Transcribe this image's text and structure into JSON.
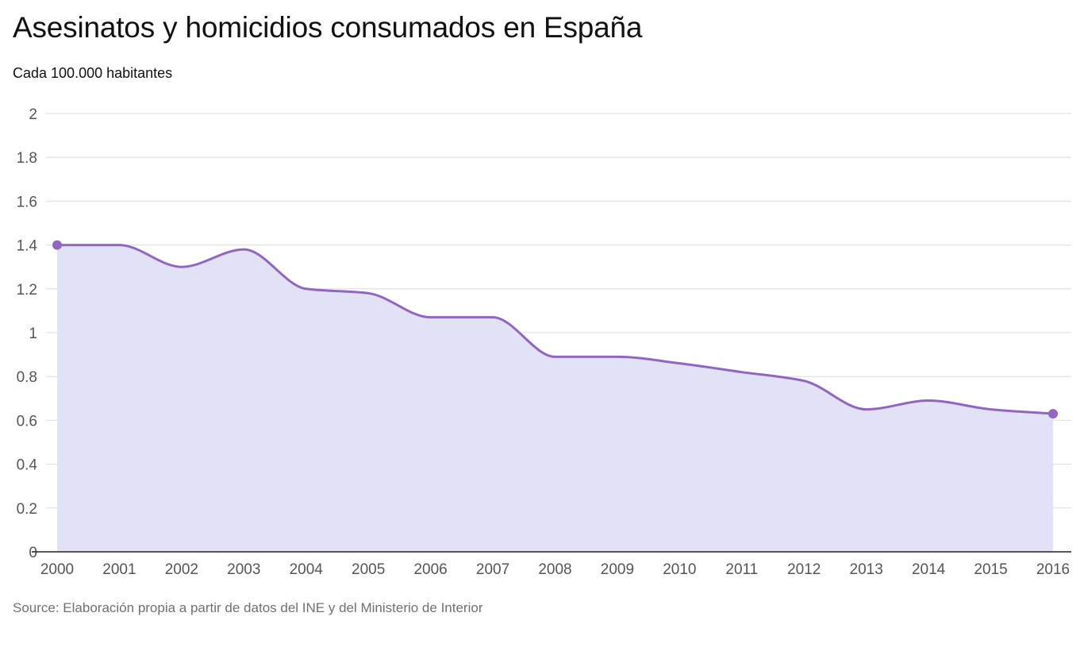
{
  "chart_data": {
    "type": "area",
    "title": "Asesinatos y homicidios consumados en España",
    "subtitle": "Cada 100.000 habitantes",
    "source": "Source: Elaboración propia a partir de datos del INE y del Ministerio de Interior",
    "xlabel": "",
    "ylabel": "",
    "categories": [
      "2000",
      "2001",
      "2002",
      "2003",
      "2004",
      "2005",
      "2006",
      "2007",
      "2008",
      "2009",
      "2010",
      "2011",
      "2012",
      "2013",
      "2014",
      "2015",
      "2016"
    ],
    "series": [
      {
        "name": "Asesinatos y homicidios consumados",
        "values": [
          1.4,
          1.4,
          1.3,
          1.38,
          1.2,
          1.18,
          1.07,
          1.07,
          0.89,
          0.89,
          0.86,
          0.82,
          0.78,
          0.65,
          0.69,
          0.65,
          0.63
        ]
      }
    ],
    "ylim": [
      0,
      2
    ],
    "yticks": [
      "0",
      "0.2",
      "0.4",
      "0.6",
      "0.8",
      "1",
      "1.2",
      "1.4",
      "1.6",
      "1.8",
      "2"
    ],
    "yticks_values": [
      0,
      0.2,
      0.4,
      0.6,
      0.8,
      1,
      1.2,
      1.4,
      1.6,
      1.8,
      2
    ],
    "grid": true,
    "colors": {
      "line": "#9265c2",
      "area": "#e1e2f5",
      "grid": "#dcdcdc",
      "axis": "#222222"
    },
    "endpoint_markers": true
  }
}
